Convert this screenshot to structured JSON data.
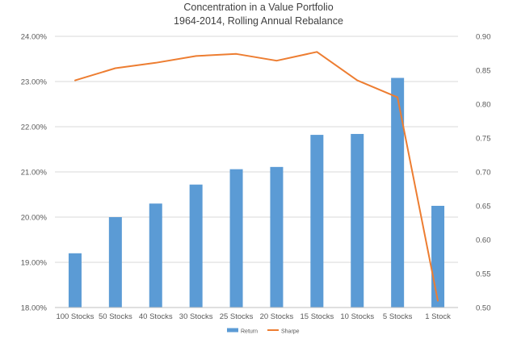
{
  "chart_data": {
    "type": "bar",
    "title": "Concentration in a Value Portfolio",
    "subtitle": "1964-2014, Rolling Annual Rebalance",
    "xlabel": "",
    "ylabel": "",
    "categories": [
      "100 Stocks",
      "50 Stocks",
      "40 Stocks",
      "30 Stocks",
      "25 Stocks",
      "20 Stocks",
      "15 Stocks",
      "10 Stocks",
      "5 Stocks",
      "1 Stock"
    ],
    "series": [
      {
        "name": "Return",
        "type": "bar",
        "axis": "left",
        "color": "#5b9bd5",
        "values": [
          0.192,
          0.2,
          0.203,
          0.2072,
          0.2106,
          0.2111,
          0.2182,
          0.2184,
          0.2308,
          0.2025
        ]
      },
      {
        "name": "Sharpe",
        "type": "line",
        "axis": "right",
        "color": "#ed7d31",
        "values": [
          0.835,
          0.853,
          0.861,
          0.871,
          0.874,
          0.864,
          0.877,
          0.835,
          0.81,
          0.51
        ]
      }
    ],
    "y_left": {
      "ylim": [
        0.18,
        0.24
      ],
      "ticks": [
        0.18,
        0.19,
        0.2,
        0.21,
        0.22,
        0.23,
        0.24
      ],
      "tick_labels": [
        "18.00%",
        "19.00%",
        "20.00%",
        "21.00%",
        "22.00%",
        "23.00%",
        "24.00%"
      ]
    },
    "y_right": {
      "ylim": [
        0.5,
        0.9
      ],
      "ticks": [
        0.5,
        0.55,
        0.6,
        0.65,
        0.7,
        0.75,
        0.8,
        0.85,
        0.9
      ],
      "tick_labels": [
        "0.50",
        "0.55",
        "0.60",
        "0.65",
        "0.70",
        "0.75",
        "0.80",
        "0.85",
        "0.90"
      ]
    },
    "grid": "horizontal",
    "legend_position": "bottom"
  }
}
